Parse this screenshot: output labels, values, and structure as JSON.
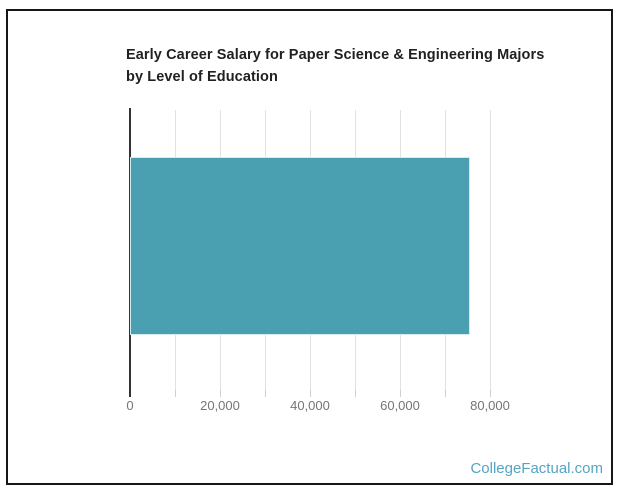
{
  "chart_data": {
    "type": "bar",
    "orientation": "horizontal",
    "title": "Early Career Salary for Paper Science & Engineering Majors by Level of Education",
    "categories": [
      ""
    ],
    "values": [
      75500
    ],
    "series": [
      {
        "name": "Early Career Salary",
        "values": [
          75500
        ]
      }
    ],
    "xlabel": "",
    "ylabel": "",
    "xlim": [
      0,
      80000
    ],
    "x_ticks": [
      0,
      20000,
      40000,
      60000,
      80000
    ],
    "x_tick_labels": [
      "0",
      "20,000",
      "40,000",
      "60,000",
      "80,000"
    ],
    "gridline_step": 10000,
    "grid": true,
    "legend": "none",
    "bar_color": "#4AA0B1",
    "bar_border_color": "#D4ECEF"
  },
  "colors": {
    "bar": "#4AA0B1",
    "title_text": "#212121",
    "axis_line": "#333333",
    "gridline": "#E2E2E2",
    "tick_label": "#757575",
    "frame_border": "#161616",
    "watermark": "#54A5C2",
    "background": "#FFFFFF"
  },
  "watermark": {
    "text": "CollegeFactual.com"
  }
}
